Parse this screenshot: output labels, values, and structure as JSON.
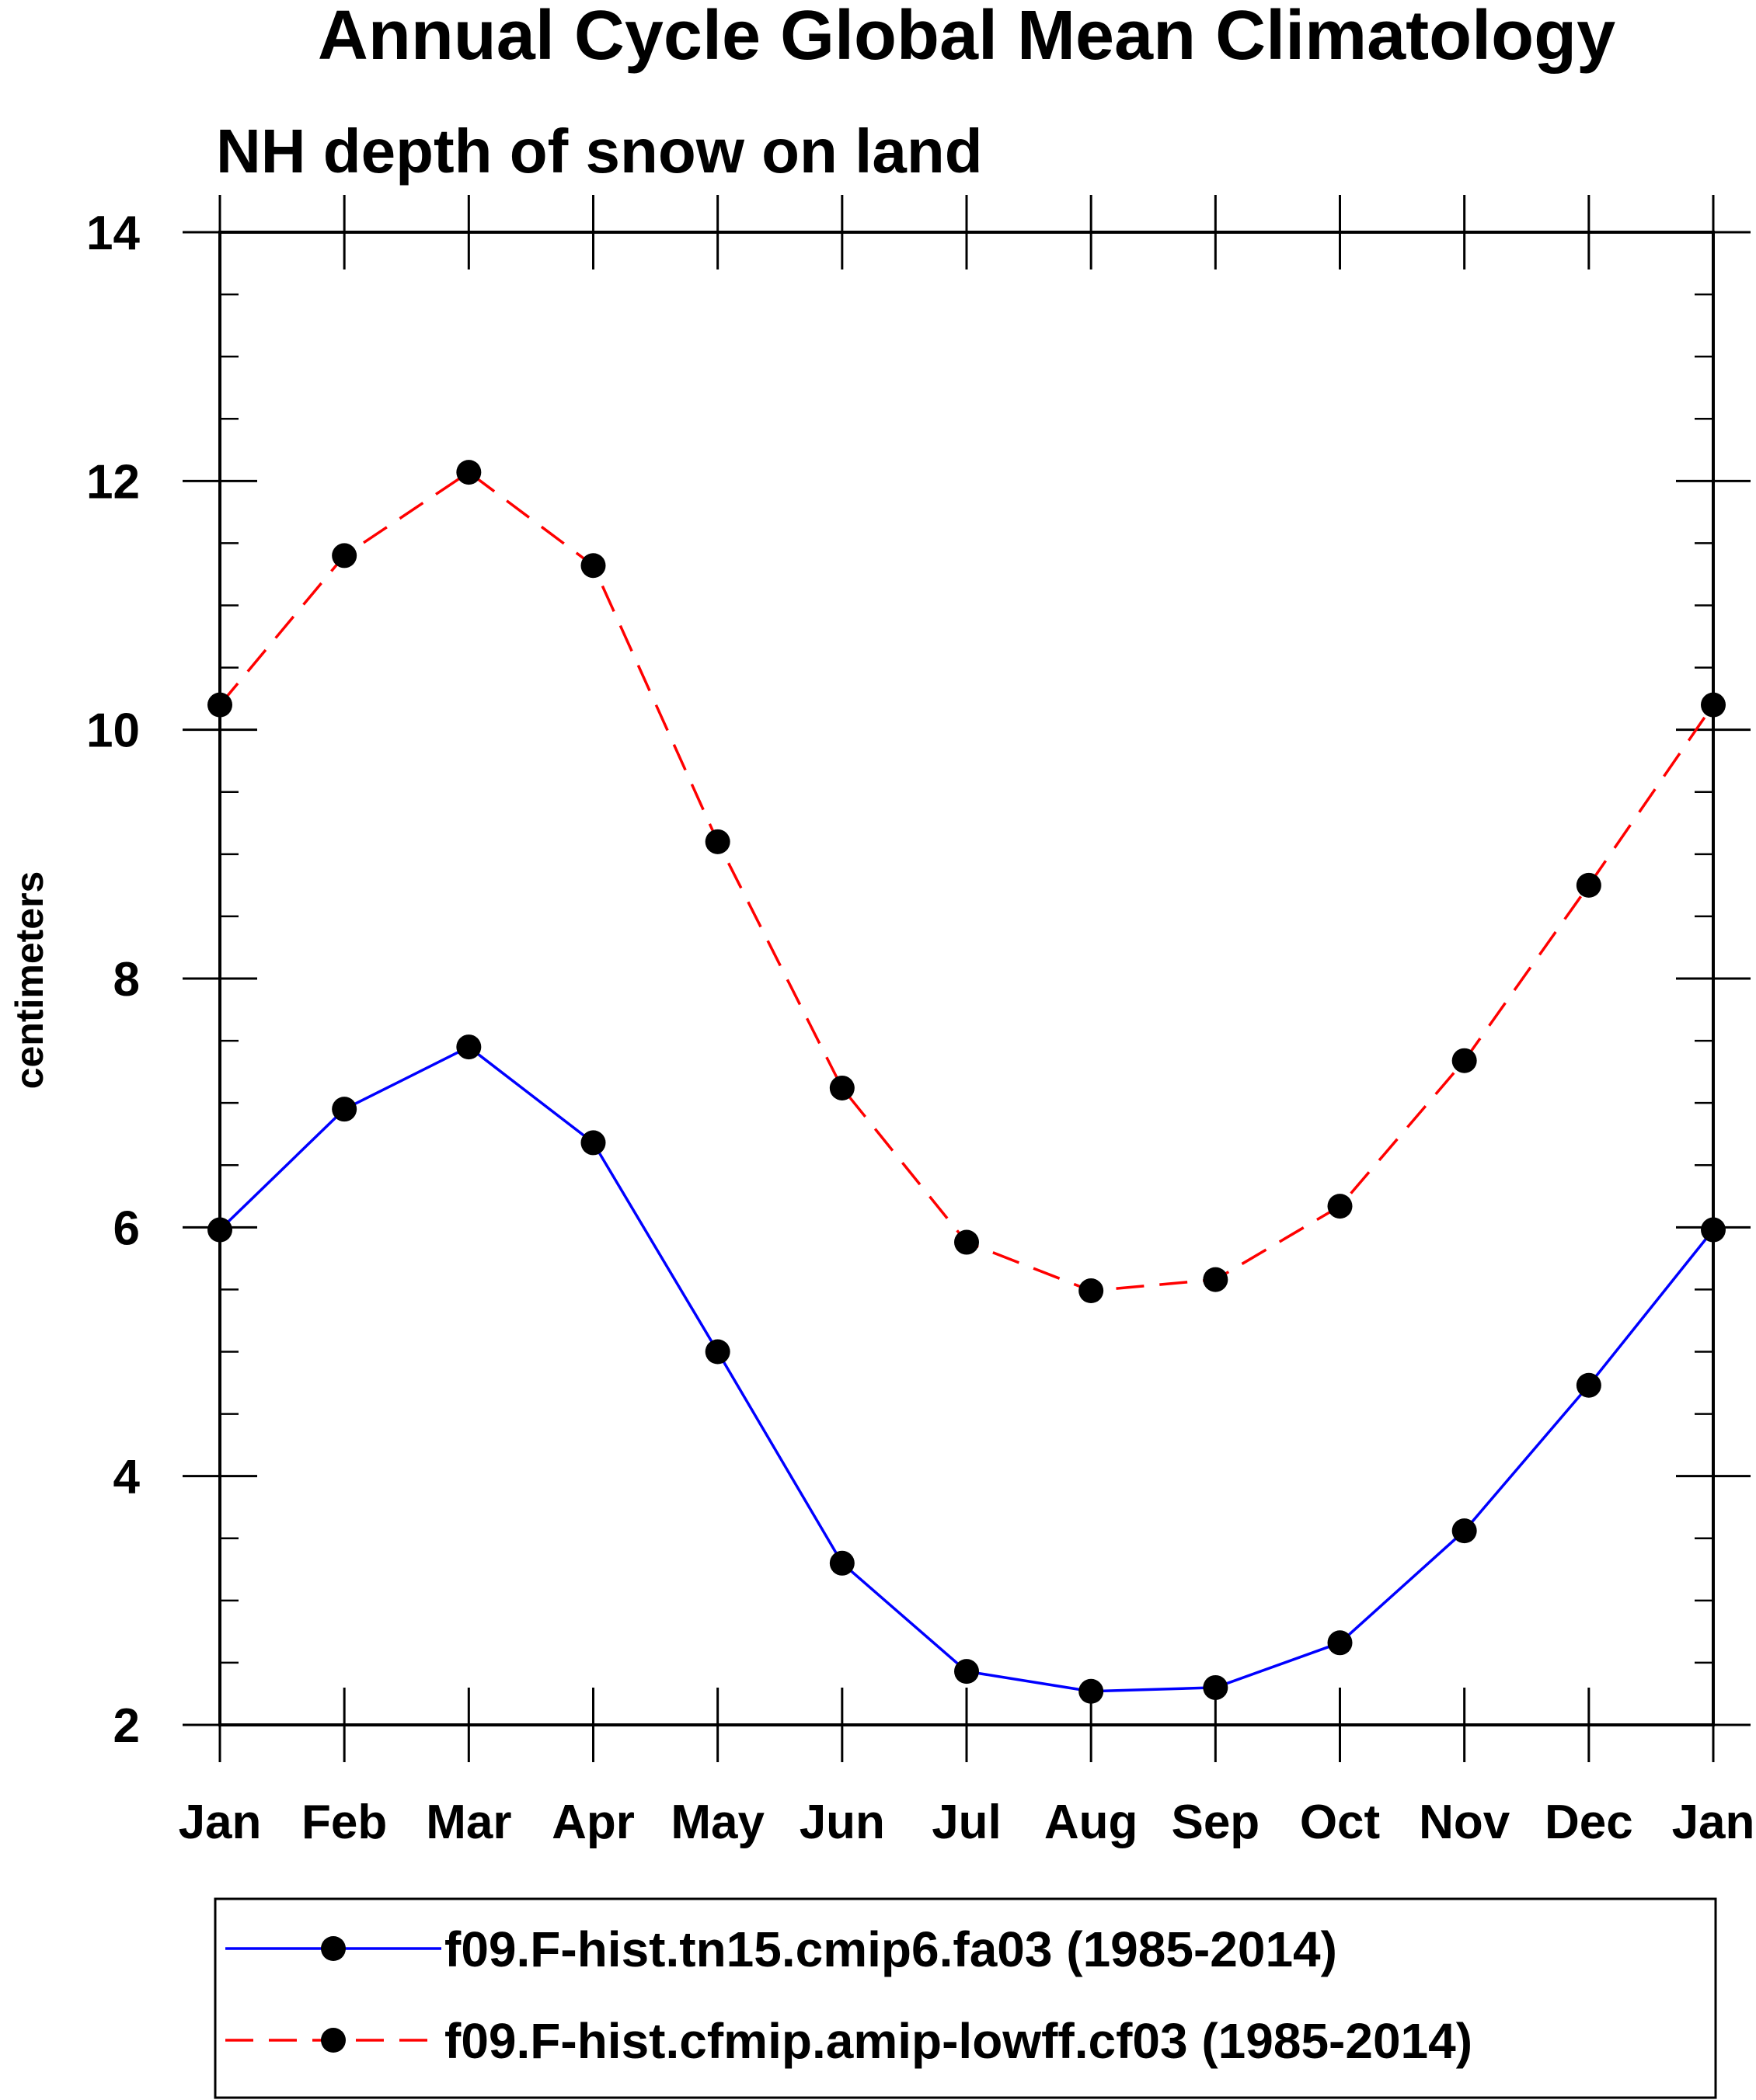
{
  "chart_data": {
    "type": "line",
    "title": "Annual Cycle Global Mean Climatology",
    "subtitle": "NH depth of snow on land",
    "xlabel": "",
    "ylabel": "centimeters",
    "categories": [
      "Jan",
      "Feb",
      "Mar",
      "Apr",
      "May",
      "Jun",
      "Jul",
      "Aug",
      "Sep",
      "Oct",
      "Nov",
      "Dec",
      "Jan"
    ],
    "ylim": [
      2,
      14
    ],
    "yticks": [
      2,
      4,
      6,
      8,
      10,
      12,
      14
    ],
    "grid": false,
    "legend_position": "bottom",
    "series": [
      {
        "name": "f09.F-hist.tn15.cmip6.fa03 (1985-2014)",
        "color": "#0000ff",
        "line_style": "solid",
        "marker": "filled-circle",
        "values": [
          5.98,
          6.95,
          7.45,
          6.68,
          5.0,
          3.3,
          2.43,
          2.27,
          2.3,
          2.66,
          3.56,
          4.73,
          5.98
        ]
      },
      {
        "name": "f09.F-hist.cfmip.amip-lowff.cf03 (1985-2014)",
        "color": "#ff0000",
        "line_style": "dashed",
        "marker": "filled-circle",
        "values": [
          10.2,
          11.4,
          12.07,
          11.32,
          9.1,
          7.12,
          5.88,
          5.49,
          5.58,
          6.17,
          7.34,
          8.75,
          10.2
        ]
      }
    ]
  }
}
